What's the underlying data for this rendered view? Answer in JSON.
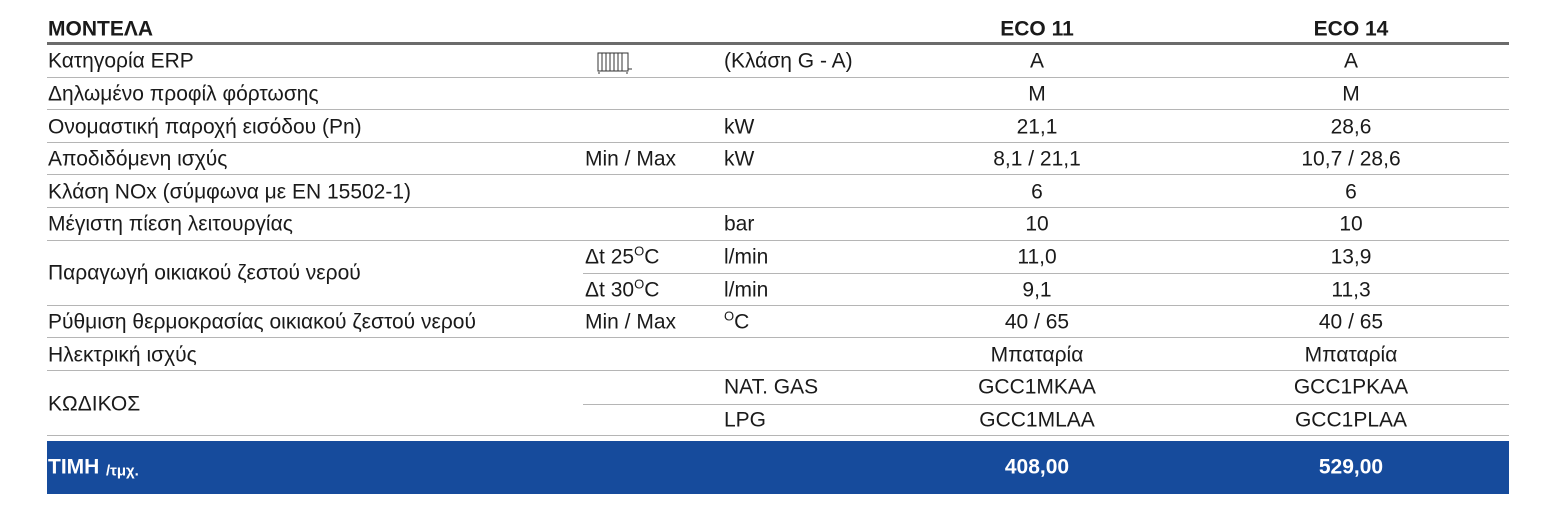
{
  "header": {
    "title": "ΜΟΝΤΕΛΑ",
    "models": [
      "ECO 11",
      "ECO 14"
    ]
  },
  "rows": [
    {
      "label": "Κατηγορία ERP",
      "lines": [
        {
          "unit": "(Κλάση G - A)",
          "values": [
            "A",
            "A"
          ]
        }
      ]
    },
    {
      "label": "Δηλωμένο προφίλ φόρτωσης",
      "lines": [
        {
          "values": [
            "M",
            "M"
          ]
        }
      ]
    },
    {
      "label": "Ονομαστική παροχή εισόδου (Pn)",
      "lines": [
        {
          "unit": "kW",
          "values": [
            "21,1",
            "28,6"
          ]
        }
      ]
    },
    {
      "label": "Αποδιδόμενη ισχύς",
      "lines": [
        {
          "qualifier": "Min / Max",
          "unit": "kW",
          "values": [
            "8,1 / 21,1",
            "10,7 / 28,6"
          ]
        }
      ]
    },
    {
      "label": "Κλάση NOx (σύμφωνα με EN 15502-1)",
      "lines": [
        {
          "values": [
            "6",
            "6"
          ]
        }
      ]
    },
    {
      "label": "Μέγιστη πίεση λειτουργίας",
      "lines": [
        {
          "unit": "bar",
          "values": [
            "10",
            "10"
          ]
        }
      ]
    },
    {
      "label": "Παραγωγή οικιακού ζεστού νερού",
      "lines": [
        {
          "qualifier": {
            "text": "Δt 25",
            "sup": "O",
            "tail": "C"
          },
          "unit": "l/min",
          "values": [
            "11,0",
            "13,9"
          ]
        },
        {
          "qualifier": {
            "text": "Δt 30",
            "sup": "O",
            "tail": "C"
          },
          "unit": "l/min",
          "values": [
            "9,1",
            "11,3"
          ]
        }
      ]
    },
    {
      "label": "Ρύθμιση θερμοκρασίας οικιακού ζεστού νερού",
      "lines": [
        {
          "qualifier": "Min / Max",
          "unit": {
            "sup": "O",
            "tail": "C"
          },
          "values": [
            "40 / 65",
            "40 / 65"
          ]
        }
      ]
    },
    {
      "label": "Ηλεκτρική ισχύς",
      "lines": [
        {
          "values": [
            "Μπαταρία",
            "Μπαταρία"
          ]
        }
      ]
    },
    {
      "label": "ΚΩΔΙΚΟΣ",
      "lines": [
        {
          "unit": "NAT. GAS",
          "values": [
            "GCC1MKAA",
            "GCC1PKAA"
          ]
        },
        {
          "unit": "LPG",
          "values": [
            "GCC1MLAA",
            "GCC1PLAA"
          ]
        }
      ]
    }
  ],
  "price": {
    "label": "ΤΙΜΗ",
    "unit": "/τμχ.",
    "values": [
      "408,00",
      "529,00"
    ]
  }
}
